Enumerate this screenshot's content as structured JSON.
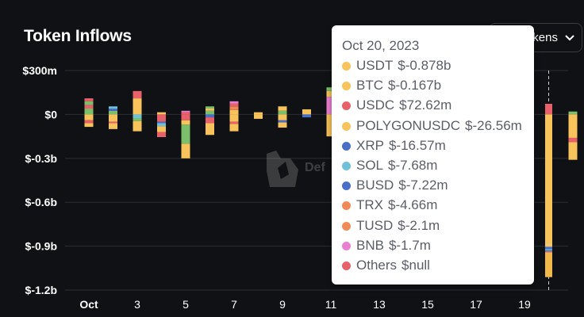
{
  "title": "Token Inflows",
  "dropdown": {
    "label": "Tokens"
  },
  "watermark": {
    "text": "Def"
  },
  "tooltip": {
    "date": "Oct 20, 2023",
    "rows": [
      {
        "name": "USDT",
        "value": "$-0.878b",
        "color": "#f7c35a"
      },
      {
        "name": "BTC",
        "value": "$-0.167b",
        "color": "#f7c35a"
      },
      {
        "name": "USDC",
        "value": "$72.62m",
        "color": "#e8616a"
      },
      {
        "name": "POLYGONUSDC",
        "value": "$-26.56m",
        "color": "#f7c35a"
      },
      {
        "name": "XRP",
        "value": "$-16.57m",
        "color": "#4a6fc9"
      },
      {
        "name": "SOL",
        "value": "$-7.68m",
        "color": "#6ec1d9"
      },
      {
        "name": "BUSD",
        "value": "$-7.22m",
        "color": "#4a6fc9"
      },
      {
        "name": "TRX",
        "value": "$-4.66m",
        "color": "#f08b57"
      },
      {
        "name": "TUSD",
        "value": "$-2.1m",
        "color": "#f08b57"
      },
      {
        "name": "BNB",
        "value": "$-1.7m",
        "color": "#e97fd0"
      },
      {
        "name": "Others",
        "value": "$null",
        "color": "#e8616a"
      }
    ]
  },
  "chart_data": {
    "type": "bar",
    "stacked": true,
    "title": "Token Inflows",
    "y_tick_labels": [
      "$300m",
      "$0",
      "$-0.3b",
      "$-0.6b",
      "$-0.9b",
      "$-1.2b"
    ],
    "y_ticks": [
      300,
      0,
      -300,
      -600,
      -900,
      -1200
    ],
    "ylim": [
      -1200,
      300
    ],
    "x_tick_labels": [
      "Oct",
      "3",
      "5",
      "7",
      "9",
      "11",
      "13",
      "15",
      "17",
      "19"
    ],
    "x_tick_days": [
      1,
      3,
      5,
      7,
      9,
      11,
      13,
      15,
      17,
      19
    ],
    "xlim": [
      0.5,
      21.5
    ],
    "colors": {
      "USDT": "#f7c35a",
      "BTC": "#f2b94a",
      "USDC": "#e8616a",
      "POLYGONUSDC": "#f5c76c",
      "XRP": "#4a6fc9",
      "SOL": "#6ec1d9",
      "TRX": "#f08b57",
      "BNB": "#e97fd0",
      "green": "#7bbf6a"
    },
    "highlight_day": 20,
    "days": [
      {
        "day": 1,
        "segments": [
          {
            "token": "green",
            "from": 0,
            "to": 40
          },
          {
            "token": "USDC",
            "from": 40,
            "to": 65
          },
          {
            "token": "green",
            "from": 65,
            "to": 90
          },
          {
            "token": "USDC",
            "from": 90,
            "to": 110
          },
          {
            "token": "USDT",
            "from": 0,
            "to": -40
          },
          {
            "token": "USDC",
            "from": -40,
            "to": -60
          },
          {
            "token": "USDT",
            "from": -60,
            "to": -85
          }
        ]
      },
      {
        "day": 2,
        "segments": [
          {
            "token": "green",
            "from": 0,
            "to": 25
          },
          {
            "token": "XRP",
            "from": 25,
            "to": 40
          },
          {
            "token": "SOL",
            "from": 40,
            "to": 55
          },
          {
            "token": "USDT",
            "from": 0,
            "to": -50
          },
          {
            "token": "USDC",
            "from": -50,
            "to": -60
          },
          {
            "token": "USDT",
            "from": -60,
            "to": -100
          }
        ]
      },
      {
        "day": 3,
        "segments": [
          {
            "token": "USDT",
            "from": 0,
            "to": 110
          },
          {
            "token": "USDC",
            "from": 110,
            "to": 160
          },
          {
            "token": "SOL",
            "from": 0,
            "to": -25
          },
          {
            "token": "green",
            "from": -25,
            "to": -45
          },
          {
            "token": "USDT",
            "from": -45,
            "to": -115
          }
        ]
      },
      {
        "day": 4,
        "segments": [
          {
            "token": "USDT",
            "from": 0,
            "to": 15
          },
          {
            "token": "USDC",
            "from": 0,
            "to": -50
          },
          {
            "token": "XRP",
            "from": -50,
            "to": -60
          },
          {
            "token": "SOL",
            "from": -60,
            "to": -80
          },
          {
            "token": "USDT",
            "from": -80,
            "to": -120
          },
          {
            "token": "USDC",
            "from": -120,
            "to": -155
          }
        ]
      },
      {
        "day": 5,
        "segments": [
          {
            "token": "USDC",
            "from": 0,
            "to": 15
          },
          {
            "token": "BNB",
            "from": 15,
            "to": 25
          },
          {
            "token": "USDC",
            "from": 0,
            "to": -40
          },
          {
            "token": "USDT",
            "from": -40,
            "to": -70
          },
          {
            "token": "green",
            "from": -70,
            "to": -200
          },
          {
            "token": "USDT",
            "from": -200,
            "to": -300
          }
        ]
      },
      {
        "day": 6,
        "segments": [
          {
            "token": "green",
            "from": 0,
            "to": 25
          },
          {
            "token": "USDT",
            "from": 25,
            "to": 40
          },
          {
            "token": "green",
            "from": 40,
            "to": 55
          },
          {
            "token": "XRP",
            "from": 0,
            "to": -20
          },
          {
            "token": "USDC",
            "from": -20,
            "to": -60
          },
          {
            "token": "USDT",
            "from": -60,
            "to": -140
          }
        ]
      },
      {
        "day": 7,
        "segments": [
          {
            "token": "USDT",
            "from": 0,
            "to": 30
          },
          {
            "token": "TRX",
            "from": 30,
            "to": 55
          },
          {
            "token": "USDC",
            "from": 55,
            "to": 75
          },
          {
            "token": "BNB",
            "from": 75,
            "to": 90
          },
          {
            "token": "USDT",
            "from": 0,
            "to": -50
          },
          {
            "token": "USDC",
            "from": -50,
            "to": -65
          },
          {
            "token": "USDT",
            "from": -65,
            "to": -115
          }
        ]
      },
      {
        "day": 8,
        "segments": [
          {
            "token": "USDT",
            "from": 0,
            "to": 15
          },
          {
            "token": "USDT",
            "from": 0,
            "to": -30
          }
        ]
      },
      {
        "day": 9,
        "segments": [
          {
            "token": "green",
            "from": 0,
            "to": 25
          },
          {
            "token": "USDT",
            "from": 25,
            "to": 55
          },
          {
            "token": "USDT",
            "from": 0,
            "to": -40
          },
          {
            "token": "XRP",
            "from": -40,
            "to": -55
          },
          {
            "token": "USDT",
            "from": -55,
            "to": -90
          }
        ]
      },
      {
        "day": 10,
        "segments": [
          {
            "token": "USDT",
            "from": 0,
            "to": 35
          },
          {
            "token": "XRP",
            "from": 0,
            "to": -20
          }
        ]
      },
      {
        "day": 11,
        "segments": [
          {
            "token": "BNB",
            "from": 0,
            "to": 120
          },
          {
            "token": "USDT",
            "from": 120,
            "to": 160
          },
          {
            "token": "green",
            "from": 160,
            "to": 185
          },
          {
            "token": "USDT",
            "from": 0,
            "to": -150
          }
        ]
      },
      {
        "day": 20,
        "segments": [
          {
            "token": "USDC",
            "from": 0,
            "to": 72.62
          },
          {
            "token": "USDT",
            "from": 0,
            "to": -878
          },
          {
            "token": "POLYGONUSDC",
            "from": -878,
            "to": -904.56
          },
          {
            "token": "XRP",
            "from": -904.56,
            "to": -921.13
          },
          {
            "token": "SOL",
            "from": -921.13,
            "to": -928.81
          },
          {
            "token": "XRP",
            "from": -928.81,
            "to": -936.03
          },
          {
            "token": "TRX",
            "from": -936.03,
            "to": -940.69
          },
          {
            "token": "TRX",
            "from": -940.69,
            "to": -942.79
          },
          {
            "token": "BNB",
            "from": -942.79,
            "to": -944.49
          },
          {
            "token": "BTC",
            "from": -944.49,
            "to": -1111.49
          }
        ]
      },
      {
        "day": 21,
        "segments": [
          {
            "token": "green",
            "from": 0,
            "to": 20
          },
          {
            "token": "USDT",
            "from": 0,
            "to": -160
          },
          {
            "token": "USDC",
            "from": -160,
            "to": -190
          },
          {
            "token": "USDT",
            "from": -190,
            "to": -310
          }
        ]
      }
    ]
  }
}
